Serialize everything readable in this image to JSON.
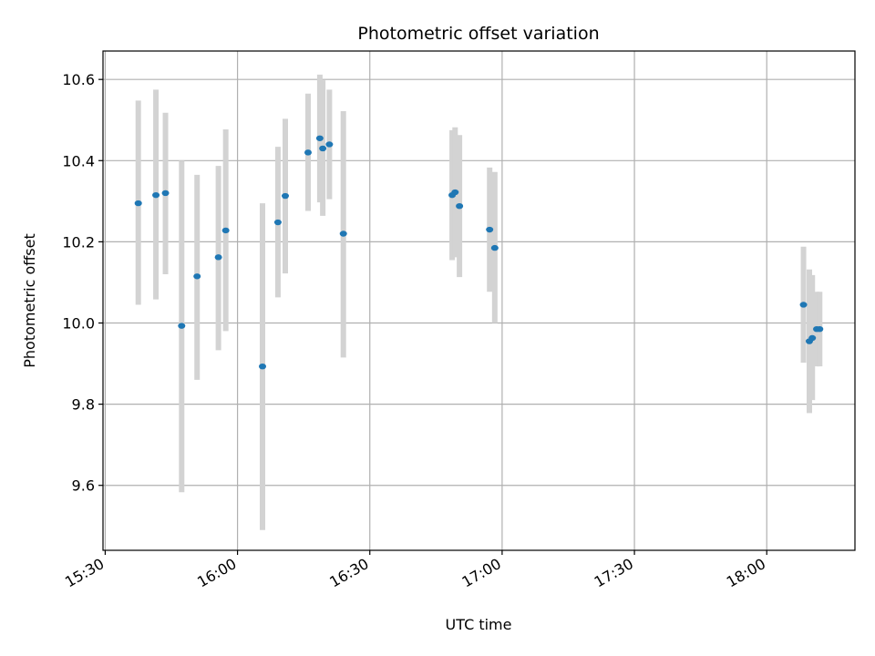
{
  "chart_data": {
    "type": "scatter",
    "title": "Photometric offset variation",
    "xlabel": "UTC time",
    "ylabel": "Photometric offset",
    "x_tick_labels": [
      "15:30",
      "16:00",
      "16:30",
      "17:00",
      "17:30",
      "18:00"
    ],
    "x_tick_values": [
      "15:30",
      "16:00",
      "16:30",
      "17:00",
      "17:30",
      "18:00"
    ],
    "y_tick_values": [
      9.6,
      9.8,
      10.0,
      10.2,
      10.4,
      10.6
    ],
    "y_tick_labels": [
      "9.6",
      "9.8",
      "10.0",
      "10.2",
      "10.4",
      "10.6"
    ],
    "xlim": [
      "15:29:30",
      "18:20:00"
    ],
    "ylim": [
      9.44,
      10.67
    ],
    "grid": true,
    "marker_color": "#1f77b4",
    "errorbar_color": "#d3d3d3",
    "points": [
      {
        "time": "15:37:30",
        "value": 10.295,
        "low": 10.045,
        "high": 10.548
      },
      {
        "time": "15:41:30",
        "value": 10.315,
        "low": 10.058,
        "high": 10.575
      },
      {
        "time": "15:43:40",
        "value": 10.32,
        "low": 10.12,
        "high": 10.518
      },
      {
        "time": "15:47:20",
        "value": 9.993,
        "low": 9.583,
        "high": 10.4
      },
      {
        "time": "15:50:50",
        "value": 10.115,
        "low": 9.86,
        "high": 10.365
      },
      {
        "time": "15:55:40",
        "value": 10.162,
        "low": 9.933,
        "high": 10.387
      },
      {
        "time": "15:57:20",
        "value": 10.228,
        "low": 9.98,
        "high": 10.477
      },
      {
        "time": "16:05:40",
        "value": 9.893,
        "low": 9.49,
        "high": 10.295
      },
      {
        "time": "16:09:10",
        "value": 10.248,
        "low": 10.063,
        "high": 10.434
      },
      {
        "time": "16:10:50",
        "value": 10.313,
        "low": 10.122,
        "high": 10.503
      },
      {
        "time": "16:16:00",
        "value": 10.42,
        "low": 10.276,
        "high": 10.565
      },
      {
        "time": "16:18:40",
        "value": 10.455,
        "low": 10.297,
        "high": 10.612
      },
      {
        "time": "16:19:20",
        "value": 10.43,
        "low": 10.264,
        "high": 10.598
      },
      {
        "time": "16:20:50",
        "value": 10.44,
        "low": 10.305,
        "high": 10.575
      },
      {
        "time": "16:24:00",
        "value": 10.22,
        "low": 9.915,
        "high": 10.522
      },
      {
        "time": "16:48:40",
        "value": 10.315,
        "low": 10.155,
        "high": 10.475
      },
      {
        "time": "16:49:20",
        "value": 10.322,
        "low": 10.162,
        "high": 10.482
      },
      {
        "time": "16:50:20",
        "value": 10.288,
        "low": 10.113,
        "high": 10.463
      },
      {
        "time": "16:57:10",
        "value": 10.23,
        "low": 10.077,
        "high": 10.383
      },
      {
        "time": "16:58:20",
        "value": 10.185,
        "low": 10.0,
        "high": 10.372
      },
      {
        "time": "18:08:20",
        "value": 10.045,
        "low": 9.902,
        "high": 10.188
      },
      {
        "time": "18:09:40",
        "value": 9.955,
        "low": 9.778,
        "high": 10.132
      },
      {
        "time": "18:10:20",
        "value": 9.963,
        "low": 9.81,
        "high": 10.118
      },
      {
        "time": "18:11:20",
        "value": 9.985,
        "low": 9.893,
        "high": 10.077
      },
      {
        "time": "18:12:00",
        "value": 9.985,
        "low": 9.893,
        "high": 10.077
      }
    ]
  }
}
